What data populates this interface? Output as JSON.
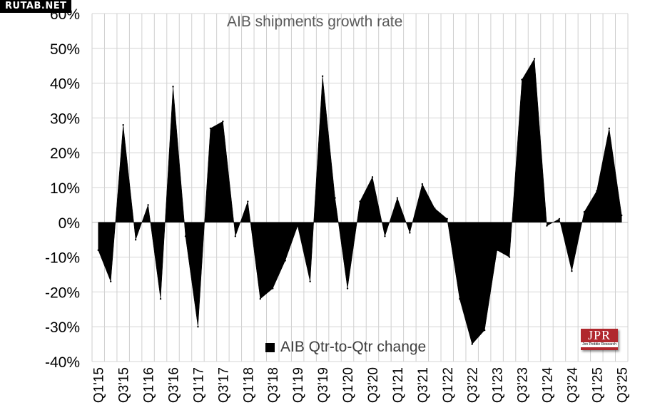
{
  "watermark": "RUTAB.NET",
  "logo": {
    "text": "JPR",
    "subtext": "Jon Peddie Research"
  },
  "chart_data": {
    "type": "area",
    "title": "AIB shipments growth rate",
    "xlabel": "",
    "ylabel": "",
    "ylim": [
      -40,
      60
    ],
    "yticks": [
      -40,
      -30,
      -20,
      -10,
      0,
      10,
      20,
      30,
      40,
      50,
      60
    ],
    "ytick_labels": [
      "-40%",
      "-30%",
      "-20%",
      "-10%",
      "0%",
      "10%",
      "20%",
      "30%",
      "40%",
      "50%",
      "60%"
    ],
    "grid": true,
    "legend_position": "bottom-center",
    "series": [
      {
        "name": "AIB Qtr-to-Qtr change",
        "color": "#000000",
        "x": [
          "Q1'15",
          "Q2'15",
          "Q3'15",
          "Q4'15",
          "Q1'16",
          "Q2'16",
          "Q3'16",
          "Q4'16",
          "Q1'17",
          "Q2'17",
          "Q3'17",
          "Q4'17",
          "Q1'18",
          "Q2'18",
          "Q3'18",
          "Q4'18",
          "Q1'19",
          "Q2'19",
          "Q3'19",
          "Q4'19",
          "Q1'20",
          "Q2'20",
          "Q3'20",
          "Q4'20",
          "Q1'21",
          "Q2'21",
          "Q3'21",
          "Q4'21",
          "Q1'22",
          "Q2'22",
          "Q3'22",
          "Q4'22",
          "Q1'23",
          "Q2'23",
          "Q3'23",
          "Q4'23",
          "Q1'24",
          "Q2'24",
          "Q3'24",
          "Q4'24",
          "Q1'25",
          "Q2'25",
          "Q3'25"
        ],
        "values": [
          -8,
          -17,
          28,
          -5,
          5,
          -22,
          39,
          -4,
          -30,
          27,
          29,
          -4,
          6,
          -22,
          -19,
          -11,
          -1,
          -17,
          42,
          7,
          -19,
          6,
          13,
          -4,
          7,
          -3,
          11,
          4,
          1,
          -22,
          -35,
          -31,
          -8,
          -10,
          41,
          47,
          -1,
          1,
          -14,
          3,
          9,
          27,
          2
        ]
      }
    ],
    "x_tick_labels": [
      "Q1'15",
      "Q3'15",
      "Q1'16",
      "Q3'16",
      "Q1'17",
      "Q3'17",
      "Q1'18",
      "Q3'18",
      "Q1'19",
      "Q3'19",
      "Q1'20",
      "Q3'20",
      "Q1'21",
      "Q3'21",
      "Q1'22",
      "Q3'22",
      "Q1'23",
      "Q3'23",
      "Q1'24",
      "Q3'24",
      "Q1'25",
      "Q3'25"
    ]
  }
}
